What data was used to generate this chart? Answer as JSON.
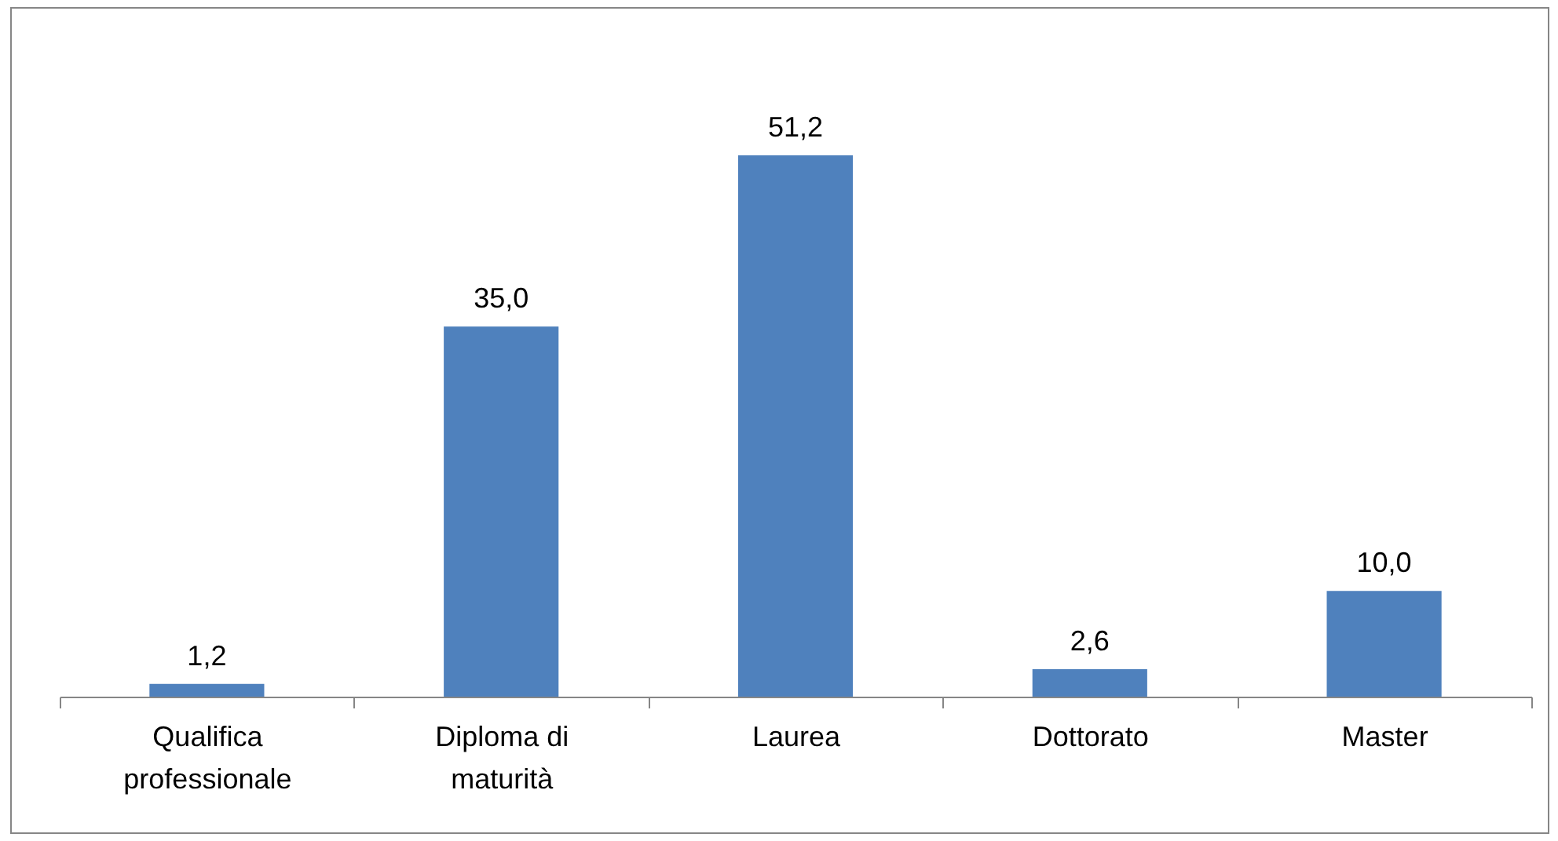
{
  "chart_data": {
    "type": "bar",
    "categories": [
      "Qualifica professionale",
      "Diploma di maturità",
      "Laurea",
      "Dottorato",
      "Master"
    ],
    "values": [
      1.2,
      35.0,
      51.2,
      2.6,
      10.0
    ],
    "color": "#4f81bd",
    "value_labels": [
      "1,2",
      "35,0",
      "51,2",
      "2,6",
      "10,0"
    ]
  }
}
